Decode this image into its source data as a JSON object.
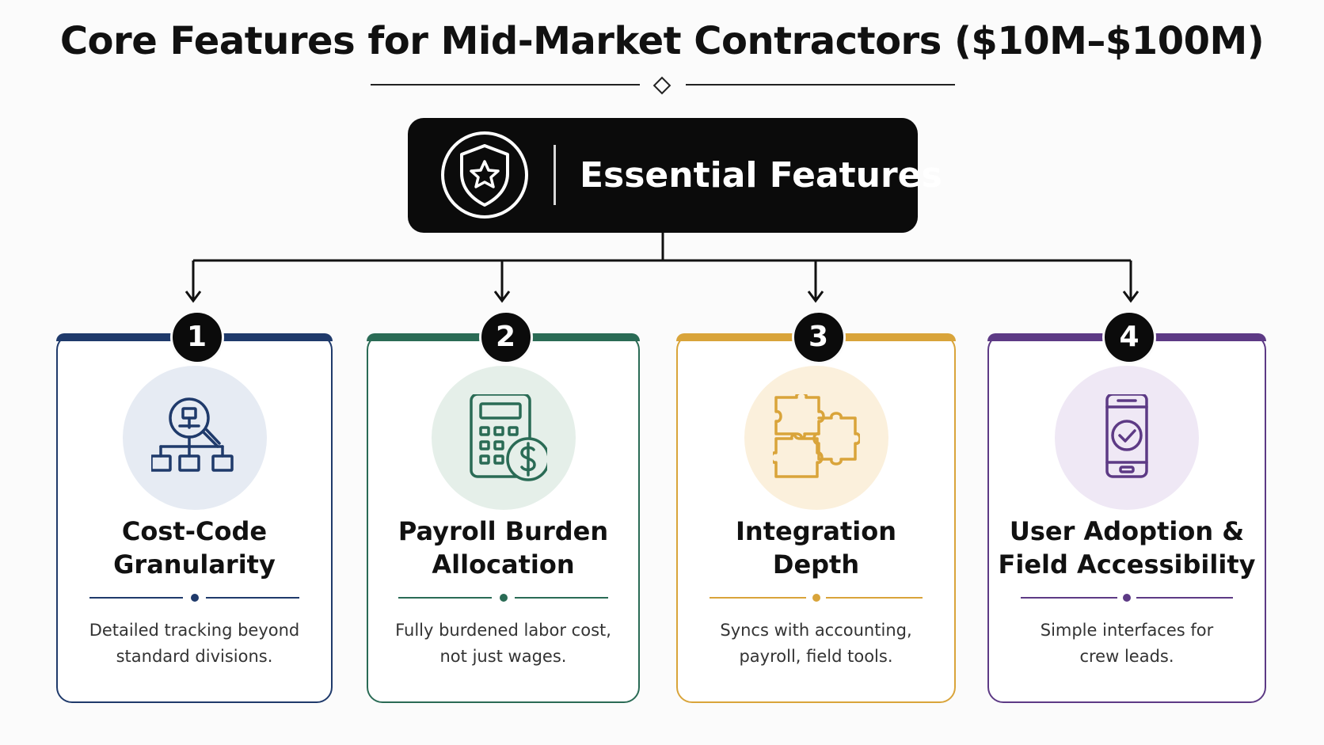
{
  "title": "Core Features for Mid-Market Contractors ($10M–$100M)",
  "hub": {
    "label": "Essential Features",
    "icon": "shield-star-icon"
  },
  "cards": [
    {
      "number": "1",
      "title_line1": "Cost-Code",
      "title_line2": "Granularity",
      "desc_line1": "Detailed tracking beyond",
      "desc_line2": "standard divisions.",
      "icon": "hierarchy-search-icon",
      "color": "#1f3a6b",
      "tint": "#e6ebf3"
    },
    {
      "number": "2",
      "title_line1": "Payroll Burden",
      "title_line2": "Allocation",
      "desc_line1": "Fully burdened labor cost,",
      "desc_line2": "not just wages.",
      "icon": "calculator-dollar-icon",
      "color": "#2a6b55",
      "tint": "#e5efe9"
    },
    {
      "number": "3",
      "title_line1": "Integration",
      "title_line2": "Depth",
      "desc_line1": "Syncs with accounting,",
      "desc_line2": "payroll, field tools.",
      "icon": "puzzle-pieces-icon",
      "color": "#d9a43a",
      "tint": "#fbf0dc"
    },
    {
      "number": "4",
      "title_line1": "User Adoption &",
      "title_line2": "Field Accessibility",
      "desc_line1": "Simple interfaces for",
      "desc_line2": "crew leads.",
      "icon": "mobile-check-icon",
      "color": "#5d3a85",
      "tint": "#efe8f5"
    }
  ]
}
